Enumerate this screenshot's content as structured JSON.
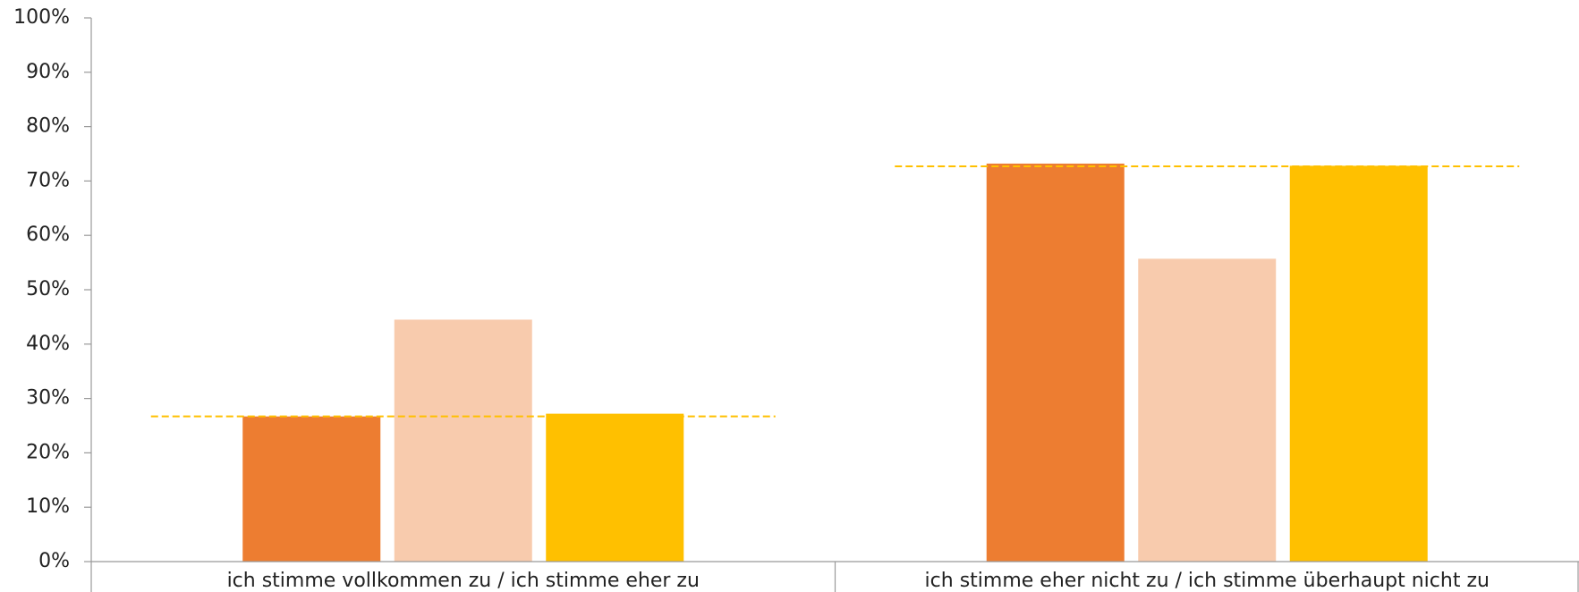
{
  "chart_data": {
    "type": "bar",
    "categories": [
      "ich stimme vollkommen zu / ich stimme eher zu",
      "ich stimme eher nicht zu / ich stimme überhaupt nicht zu"
    ],
    "series": [
      {
        "color": "#ed7d31",
        "values": [
          26.7,
          73.2
        ]
      },
      {
        "color": "#f8cbad",
        "values": [
          44.5,
          55.7
        ]
      },
      {
        "color": "#ffc000",
        "values": [
          27.2,
          72.8
        ]
      }
    ],
    "reference_line": {
      "color": "#ffc000",
      "style": "dashed",
      "values": [
        26.7,
        72.7
      ]
    },
    "ylim": [
      0,
      100
    ],
    "yticks": [
      {
        "value": 0,
        "label": "0%"
      },
      {
        "value": 10,
        "label": "10%"
      },
      {
        "value": 20,
        "label": "20%"
      },
      {
        "value": 30,
        "label": "30%"
      },
      {
        "value": 40,
        "label": "40%"
      },
      {
        "value": 50,
        "label": "50%"
      },
      {
        "value": 60,
        "label": "60%"
      },
      {
        "value": 70,
        "label": "70%"
      },
      {
        "value": 80,
        "label": "80%"
      },
      {
        "value": 90,
        "label": "90%"
      },
      {
        "value": 100,
        "label": "100%"
      }
    ],
    "grid": false
  }
}
